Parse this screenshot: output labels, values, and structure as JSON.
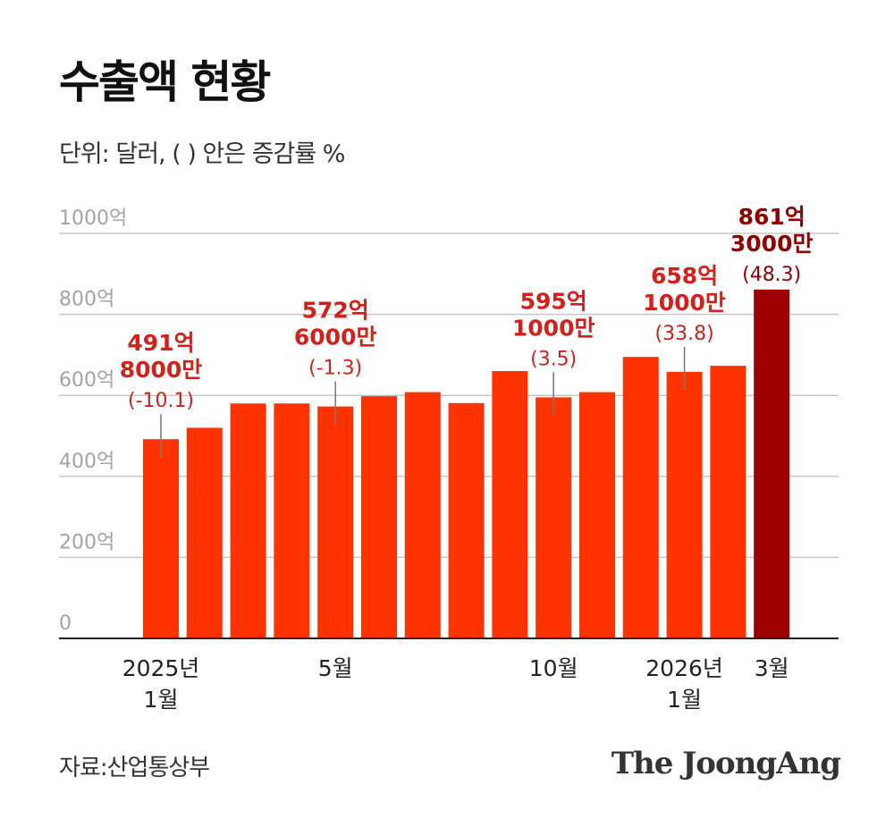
{
  "title": "수출액 현황",
  "subtitle": "단위: 달러, ( ) 안은 증감률 %",
  "source": "자료:산업통상부",
  "brand": "The JoongAng",
  "colors": {
    "bar": "#ff3300",
    "bar_highlight": "#9c0000",
    "annotation": "#d4201a",
    "annotation_highlight": "#8f0000",
    "grid": "#c8c8c8",
    "tick": "#a3a3a3"
  },
  "chart_data": {
    "type": "bar",
    "ylim": [
      0,
      1000
    ],
    "y_ticks": [
      {
        "value": 0,
        "label": "0"
      },
      {
        "value": 200,
        "label": "200억"
      },
      {
        "value": 400,
        "label": "400억"
      },
      {
        "value": 600,
        "label": "600억"
      },
      {
        "value": 800,
        "label": "800억"
      },
      {
        "value": 1000,
        "label": "1000억"
      }
    ],
    "grid": true,
    "values": [
      491.8,
      520,
      580,
      580,
      572.6,
      598,
      608,
      581,
      660,
      595.1,
      608,
      695,
      658.1,
      673,
      861.3
    ],
    "x_labels": [
      {
        "index": 0,
        "lines": [
          "2025년",
          "1월"
        ]
      },
      {
        "index": 4,
        "lines": [
          "5월"
        ]
      },
      {
        "index": 9,
        "lines": [
          "10월"
        ]
      },
      {
        "index": 12,
        "lines": [
          "2026년",
          "1월"
        ]
      },
      {
        "index": 14,
        "lines": [
          "3월"
        ]
      }
    ],
    "annotations": [
      {
        "index": 0,
        "lines": [
          "491억",
          "8000만"
        ],
        "pct": "(-10.1)"
      },
      {
        "index": 4,
        "lines": [
          "572억",
          "6000만"
        ],
        "pct": "(-1.3)"
      },
      {
        "index": 9,
        "lines": [
          "595억",
          "1000만"
        ],
        "pct": "(3.5)"
      },
      {
        "index": 12,
        "lines": [
          "658억",
          "1000만"
        ],
        "pct": "(33.8)"
      },
      {
        "index": 14,
        "lines": [
          "861억",
          "3000만"
        ],
        "pct": "(48.3)",
        "highlight": true
      }
    ]
  }
}
